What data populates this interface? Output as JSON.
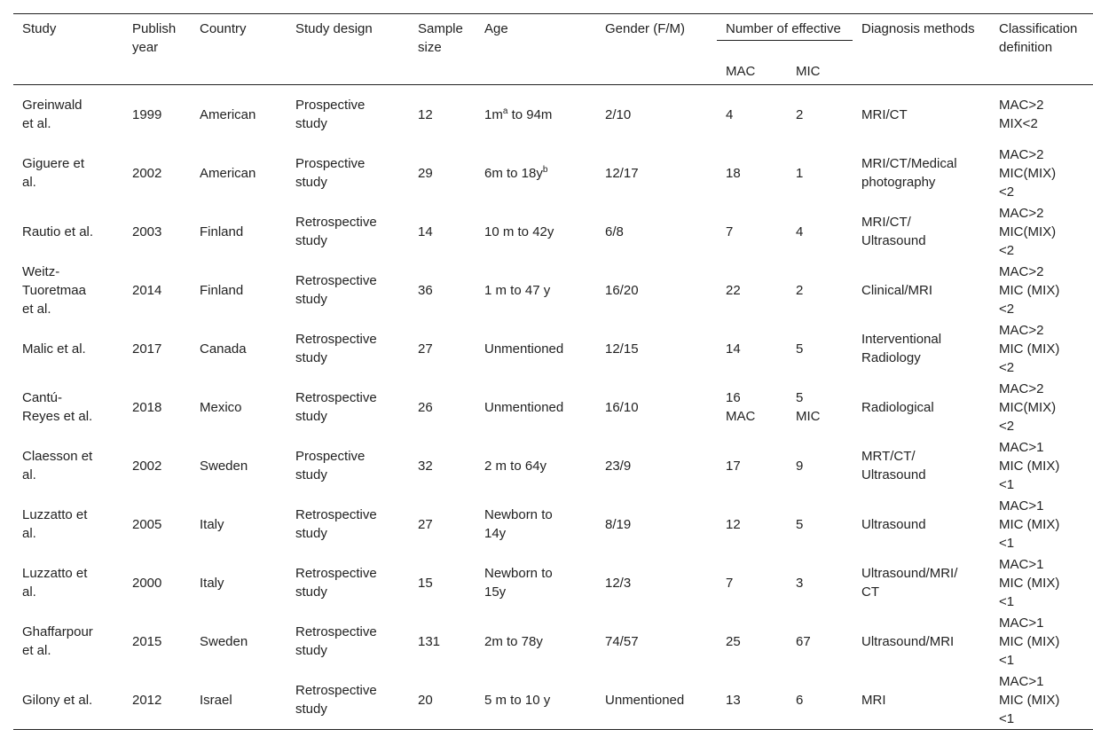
{
  "table": {
    "header": {
      "study": "Study",
      "year": "Publish year",
      "country": "Country",
      "design": "Study design",
      "sample": "Sample size",
      "age": "Age",
      "gender": "Gender (F/M)",
      "effective": "Number of effective",
      "mac": "MAC",
      "mic": "MIC",
      "diagnosis": "Diagnosis methods",
      "classification": "Classification definition"
    },
    "rows": [
      [
        "Greinwald et al.",
        "1999",
        "American",
        "Prospective study",
        "12",
        {
          "base": "1m",
          "sup": "a",
          "tail": " to 94m"
        },
        "2/10",
        "4",
        "2",
        "MRI/CT",
        [
          "MAC>2",
          "MIX<2"
        ]
      ],
      [
        "Giguere et al.",
        "2002",
        "American",
        "Prospective study",
        "29",
        {
          "base": "6m to 18y",
          "sup": "b"
        },
        "12/17",
        "18",
        "1",
        "MRI/CT/Medical photography",
        [
          "MAC>2",
          "MIC(MIX)",
          "<2"
        ]
      ],
      [
        "Rautio et al.",
        "2003",
        "Finland",
        "Retrospective study",
        "14",
        "10 m to 42y",
        "6/8",
        "7",
        "4",
        "MRI/CT/ Ultrasound",
        [
          "MAC>2",
          "MIC(MIX)",
          "<2"
        ]
      ],
      [
        "Weitz-Tuoretmaa et al.",
        "2014",
        "Finland",
        "Retrospective study",
        "36",
        "1 m to 47 y",
        "16/20",
        "22",
        "2",
        "Clinical/MRI",
        [
          "MAC>2",
          "MIC (MIX)",
          "<2"
        ]
      ],
      [
        "Malic et al.",
        "2017",
        "Canada",
        "Retrospective study",
        "27",
        "Unmentioned",
        "12/15",
        "14",
        "5",
        "Interventional Radiology",
        [
          "MAC>2",
          "MIC (MIX)",
          "<2"
        ]
      ],
      [
        "Cantú-Reyes et al.",
        "2018",
        "Mexico",
        "Retrospective study",
        "26",
        "Unmentioned",
        "16/10",
        "16 MAC",
        "5 MIC",
        "Radiological",
        [
          "MAC>2",
          "MIC(MIX)",
          "<2"
        ]
      ],
      [
        "Claesson et al.",
        "2002",
        "Sweden",
        "Prospective study",
        "32",
        "2 m to 64y",
        "23/9",
        "17",
        "9",
        "MRT/CT/ Ultrasound",
        [
          "MAC>1",
          "MIC (MIX)",
          "<1"
        ]
      ],
      [
        "Luzzatto et al.",
        "2005",
        "Italy",
        "Retrospective study",
        "27",
        "Newborn to 14y",
        "8/19",
        "12",
        "5",
        "Ultrasound",
        [
          "MAC>1",
          "MIC (MIX)",
          "<1"
        ]
      ],
      [
        "Luzzatto et al.",
        "2000",
        "Italy",
        "Retrospective study",
        "15",
        "Newborn to 15y",
        "12/3",
        "7",
        "3",
        "Ultrasound/MRI/ CT",
        [
          "MAC>1",
          "MIC (MIX)",
          "<1"
        ]
      ],
      [
        "Ghaffarpour et al.",
        "2015",
        "Sweden",
        "Retrospective study",
        "131",
        "2m to 78y",
        "74/57",
        "25",
        "67",
        "Ultrasound/MRI",
        [
          "MAC>1",
          "MIC (MIX)",
          "<1"
        ]
      ],
      [
        "Gilony et al.",
        "2012",
        "Israel",
        "Retrospective study",
        "20",
        "5 m to 10 y",
        "Unmentioned",
        "13",
        "6",
        "MRI",
        [
          "MAC>1",
          "MIC (MIX)",
          "<1"
        ]
      ]
    ]
  }
}
